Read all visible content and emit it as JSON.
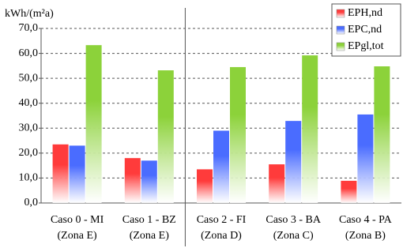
{
  "chart_data": {
    "type": "bar",
    "ylabel": "kWh/(m²a)",
    "categories": [
      [
        "Caso 0 - MI",
        "(Zona E)"
      ],
      [
        "Caso 1 - BZ",
        "(Zona E)"
      ],
      [
        "Caso 2 - FI",
        "(Zona D)"
      ],
      [
        "Caso 3 - BA",
        "(Zona C)"
      ],
      [
        "Caso 4 - PA",
        "(Zona B)"
      ]
    ],
    "series": [
      {
        "name": "EPH,nd",
        "color": "#ff3b3b",
        "values": [
          23.5,
          18,
          13.5,
          15.5,
          8.9
        ]
      },
      {
        "name": "EPC,nd",
        "color": "#4a6cff",
        "values": [
          23,
          17,
          29,
          32.9,
          35.5
        ]
      },
      {
        "name": "EPgl,tot",
        "color": "#8cd23a",
        "values": [
          63.3,
          53.2,
          54.5,
          59.2,
          54.8
        ]
      }
    ],
    "ylim": [
      0,
      70
    ],
    "yticks": [
      {
        "value": 0,
        "label": "0,0"
      },
      {
        "value": 10,
        "label": "10,0"
      },
      {
        "value": 20,
        "label": "20,0"
      },
      {
        "value": 30,
        "label": "30,0"
      },
      {
        "value": 40,
        "label": "40,0"
      },
      {
        "value": 50,
        "label": "50,0"
      },
      {
        "value": 60,
        "label": "60,0"
      },
      {
        "value": 70,
        "label": "70,0"
      }
    ],
    "grid": true,
    "legend": "top-right"
  }
}
